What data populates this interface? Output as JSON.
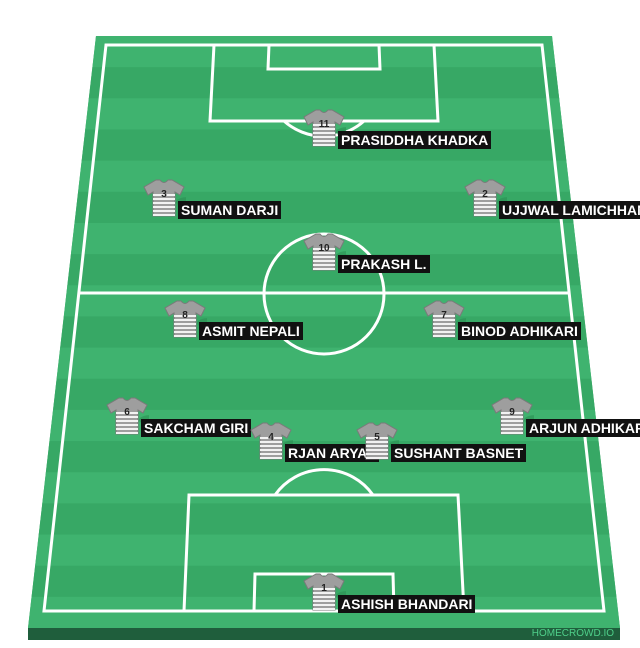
{
  "colors": {
    "pitch_light": "#3fb36f",
    "pitch_dark": "#37a865",
    "pitch_border": "#2f9a5a",
    "base": "#1f5e3c",
    "lines": "#ffffff",
    "shirt": "#9e9e9e",
    "shirt_stripe": "#f2f2f2",
    "label_bg": "#111111",
    "label_text": "#ffffff",
    "watermark": "#4fd08a"
  },
  "watermark": "HOMECROWD.IO",
  "players": [
    {
      "number": "11",
      "name": "PRASIDDHA KHADKA",
      "icon": "shirt-icon"
    },
    {
      "number": "3",
      "name": "SUMAN DARJI",
      "icon": "shirt-icon"
    },
    {
      "number": "2",
      "name": "UJJWAL LAMICHHANE",
      "icon": "shirt-icon"
    },
    {
      "number": "10",
      "name": "PRAKASH L.",
      "icon": "shirt-icon"
    },
    {
      "number": "8",
      "name": "ASMIT NEPALI",
      "icon": "shirt-icon"
    },
    {
      "number": "7",
      "name": "BINOD ADHIKARI",
      "icon": "shirt-icon"
    },
    {
      "number": "6",
      "name": "SAKCHAM GIRI",
      "icon": "shirt-icon"
    },
    {
      "number": "9",
      "name": "ARJUN ADHIKARI",
      "icon": "shirt-icon"
    },
    {
      "number": "4",
      "name": "RJAN ARYAL",
      "icon": "shirt-icon"
    },
    {
      "number": "5",
      "name": "SUSHANT BASNET",
      "icon": "shirt-icon"
    },
    {
      "number": "1",
      "name": "ASHISH BHANDARI",
      "icon": "shirt-icon"
    }
  ]
}
